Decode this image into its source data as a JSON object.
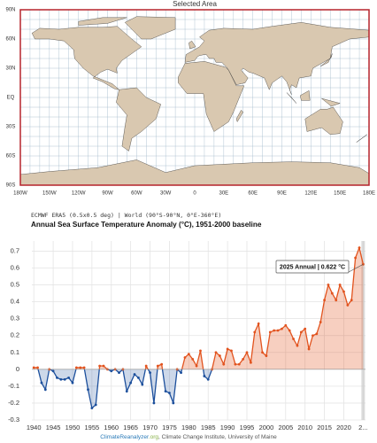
{
  "map": {
    "title": "Selected Area",
    "lon_labels": [
      "180W",
      "150W",
      "120W",
      "90W",
      "60W",
      "30W",
      "0",
      "30E",
      "60E",
      "90E",
      "120E",
      "150E",
      "180E"
    ],
    "lat_labels": [
      "90N",
      "60N",
      "30N",
      "EQ",
      "30S",
      "60S",
      "90S"
    ]
  },
  "chart_data": {
    "type": "line",
    "subtitle": "ECMWF ERA5 (0.5x0.5 deg) | World (90°S-90°N, 0°E-360°E)",
    "title": "Annual Sea Surface Temperature Anomaly (°C), 1951-2000 baseline",
    "annotation": "2025 Annual | 0.622 °C",
    "x": [
      1940,
      1941,
      1942,
      1943,
      1944,
      1945,
      1946,
      1947,
      1948,
      1949,
      1950,
      1951,
      1952,
      1953,
      1954,
      1955,
      1956,
      1957,
      1958,
      1959,
      1960,
      1961,
      1962,
      1963,
      1964,
      1965,
      1966,
      1967,
      1968,
      1969,
      1970,
      1971,
      1972,
      1973,
      1974,
      1975,
      1976,
      1977,
      1978,
      1979,
      1980,
      1981,
      1982,
      1983,
      1984,
      1985,
      1986,
      1987,
      1988,
      1989,
      1990,
      1991,
      1992,
      1993,
      1994,
      1995,
      1996,
      1997,
      1998,
      1999,
      2000,
      2001,
      2002,
      2003,
      2004,
      2005,
      2006,
      2007,
      2008,
      2009,
      2010,
      2011,
      2012,
      2013,
      2014,
      2015,
      2016,
      2017,
      2018,
      2019,
      2020,
      2021,
      2022,
      2023,
      2024,
      2025
    ],
    "series": [
      {
        "color": "#e2531e",
        "negative_color": "#1c4f9c",
        "values": [
          0.01,
          0.01,
          -0.08,
          -0.12,
          0.0,
          -0.01,
          -0.05,
          -0.06,
          -0.06,
          -0.05,
          -0.08,
          0.01,
          0.01,
          0.01,
          -0.12,
          -0.23,
          -0.21,
          0.02,
          0.02,
          0.0,
          -0.01,
          0.0,
          -0.02,
          0.0,
          -0.13,
          -0.08,
          -0.03,
          -0.05,
          -0.09,
          0.02,
          -0.02,
          -0.2,
          0.02,
          0.03,
          -0.13,
          -0.14,
          -0.2,
          0.0,
          -0.02,
          0.07,
          0.09,
          0.06,
          0.02,
          0.11,
          -0.04,
          -0.06,
          0.0,
          0.1,
          0.08,
          0.03,
          0.12,
          0.11,
          0.03,
          0.03,
          0.06,
          0.1,
          0.04,
          0.22,
          0.27,
          0.1,
          0.08,
          0.22,
          0.23,
          0.23,
          0.24,
          0.26,
          0.23,
          0.18,
          0.14,
          0.22,
          0.24,
          0.12,
          0.2,
          0.21,
          0.28,
          0.41,
          0.5,
          0.45,
          0.41,
          0.5,
          0.46,
          0.38,
          0.41,
          0.66,
          0.72,
          0.622
        ]
      }
    ],
    "xlim": [
      1939.5,
      2025.6
    ],
    "xticks": [
      1940,
      1945,
      1950,
      1955,
      1960,
      1965,
      1970,
      1975,
      1980,
      1985,
      1990,
      1995,
      2000,
      2005,
      2010,
      2015,
      2020,
      {
        "value": 2025,
        "label": "2..."
      }
    ],
    "ylim": [
      -0.3,
      0.76
    ],
    "yticks": [
      -0.3,
      -0.2,
      -0.1,
      0,
      0.1,
      0.2,
      0.3,
      0.4,
      0.5,
      0.6,
      0.7
    ],
    "grid": true
  },
  "footer": {
    "site": "ClimateReanalyzer",
    "domain": ".org",
    "credit": ", Climate Change Institute, University of Maine"
  }
}
